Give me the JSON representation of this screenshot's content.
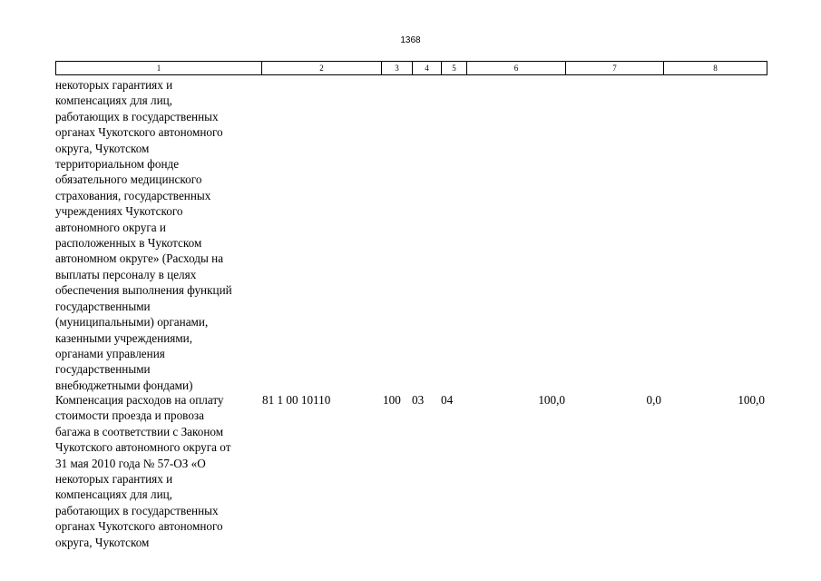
{
  "page_number": "1368",
  "table_header": [
    "1",
    "2",
    "3",
    "4",
    "5",
    "6",
    "7",
    "8"
  ],
  "previous_row": {
    "description_lines": [
      "некоторых гарантиях и",
      "компенсациях для лиц,",
      "работающих в государственных",
      "органах Чукотского автономного",
      "округа, Чукотском",
      "территориальном фонде",
      "обязательного медицинского",
      "страхования, государственных",
      "учреждениях Чукотского",
      "автономного округа и",
      "расположенных в Чукотском",
      "автономном округе» (Расходы на",
      "выплаты персоналу в целях",
      "обеспечения выполнения функций",
      "государственными",
      "(муниципальными) органами,",
      "казенными учреждениями,",
      "органами управления",
      "государственными",
      "внебюджетными фондами)"
    ]
  },
  "current_row": {
    "description_lines": [
      "Компенсация расходов на оплату",
      "стоимости проезда и провоза",
      "багажа в соответствии с Законом",
      "Чукотского автономного округа от",
      "31 мая 2010 года № 57-ОЗ «О",
      "некоторых гарантиях и",
      "компенсациях для лиц,",
      "работающих в государственных",
      "органах Чукотского автономного",
      "округа, Чукотском"
    ],
    "code": "81 1 00 10110",
    "section": "100",
    "subsection": "03",
    "group": "04",
    "value_6": "100,0",
    "value_7": "0,0",
    "value_8": "100,0"
  }
}
